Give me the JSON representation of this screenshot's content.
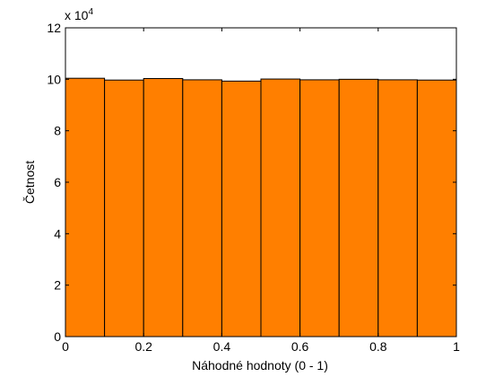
{
  "chart_data": {
    "type": "bar",
    "variant": "histogram",
    "bin_edges": [
      0,
      0.1,
      0.2,
      0.3,
      0.4,
      0.5,
      0.6,
      0.7,
      0.8,
      0.9,
      1.0
    ],
    "values": [
      100400,
      99700,
      100300,
      99800,
      99300,
      100100,
      99800,
      100000,
      99800,
      99700
    ],
    "xlabel": "Náhodné hodnoty (0 - 1)",
    "ylabel": "Četnost",
    "xlim": [
      0,
      1
    ],
    "ylim": [
      0,
      120000
    ],
    "x_ticks": [
      "0",
      "0.2",
      "0.4",
      "0.6",
      "0.8",
      "1"
    ],
    "y_ticks": [
      "0",
      "2",
      "4",
      "6",
      "8",
      "10",
      "12"
    ],
    "y_scale_label": "x 10",
    "y_scale_exponent": "4",
    "bar_color": "#ff7f00",
    "edge_color": "#000000",
    "grid": false
  }
}
